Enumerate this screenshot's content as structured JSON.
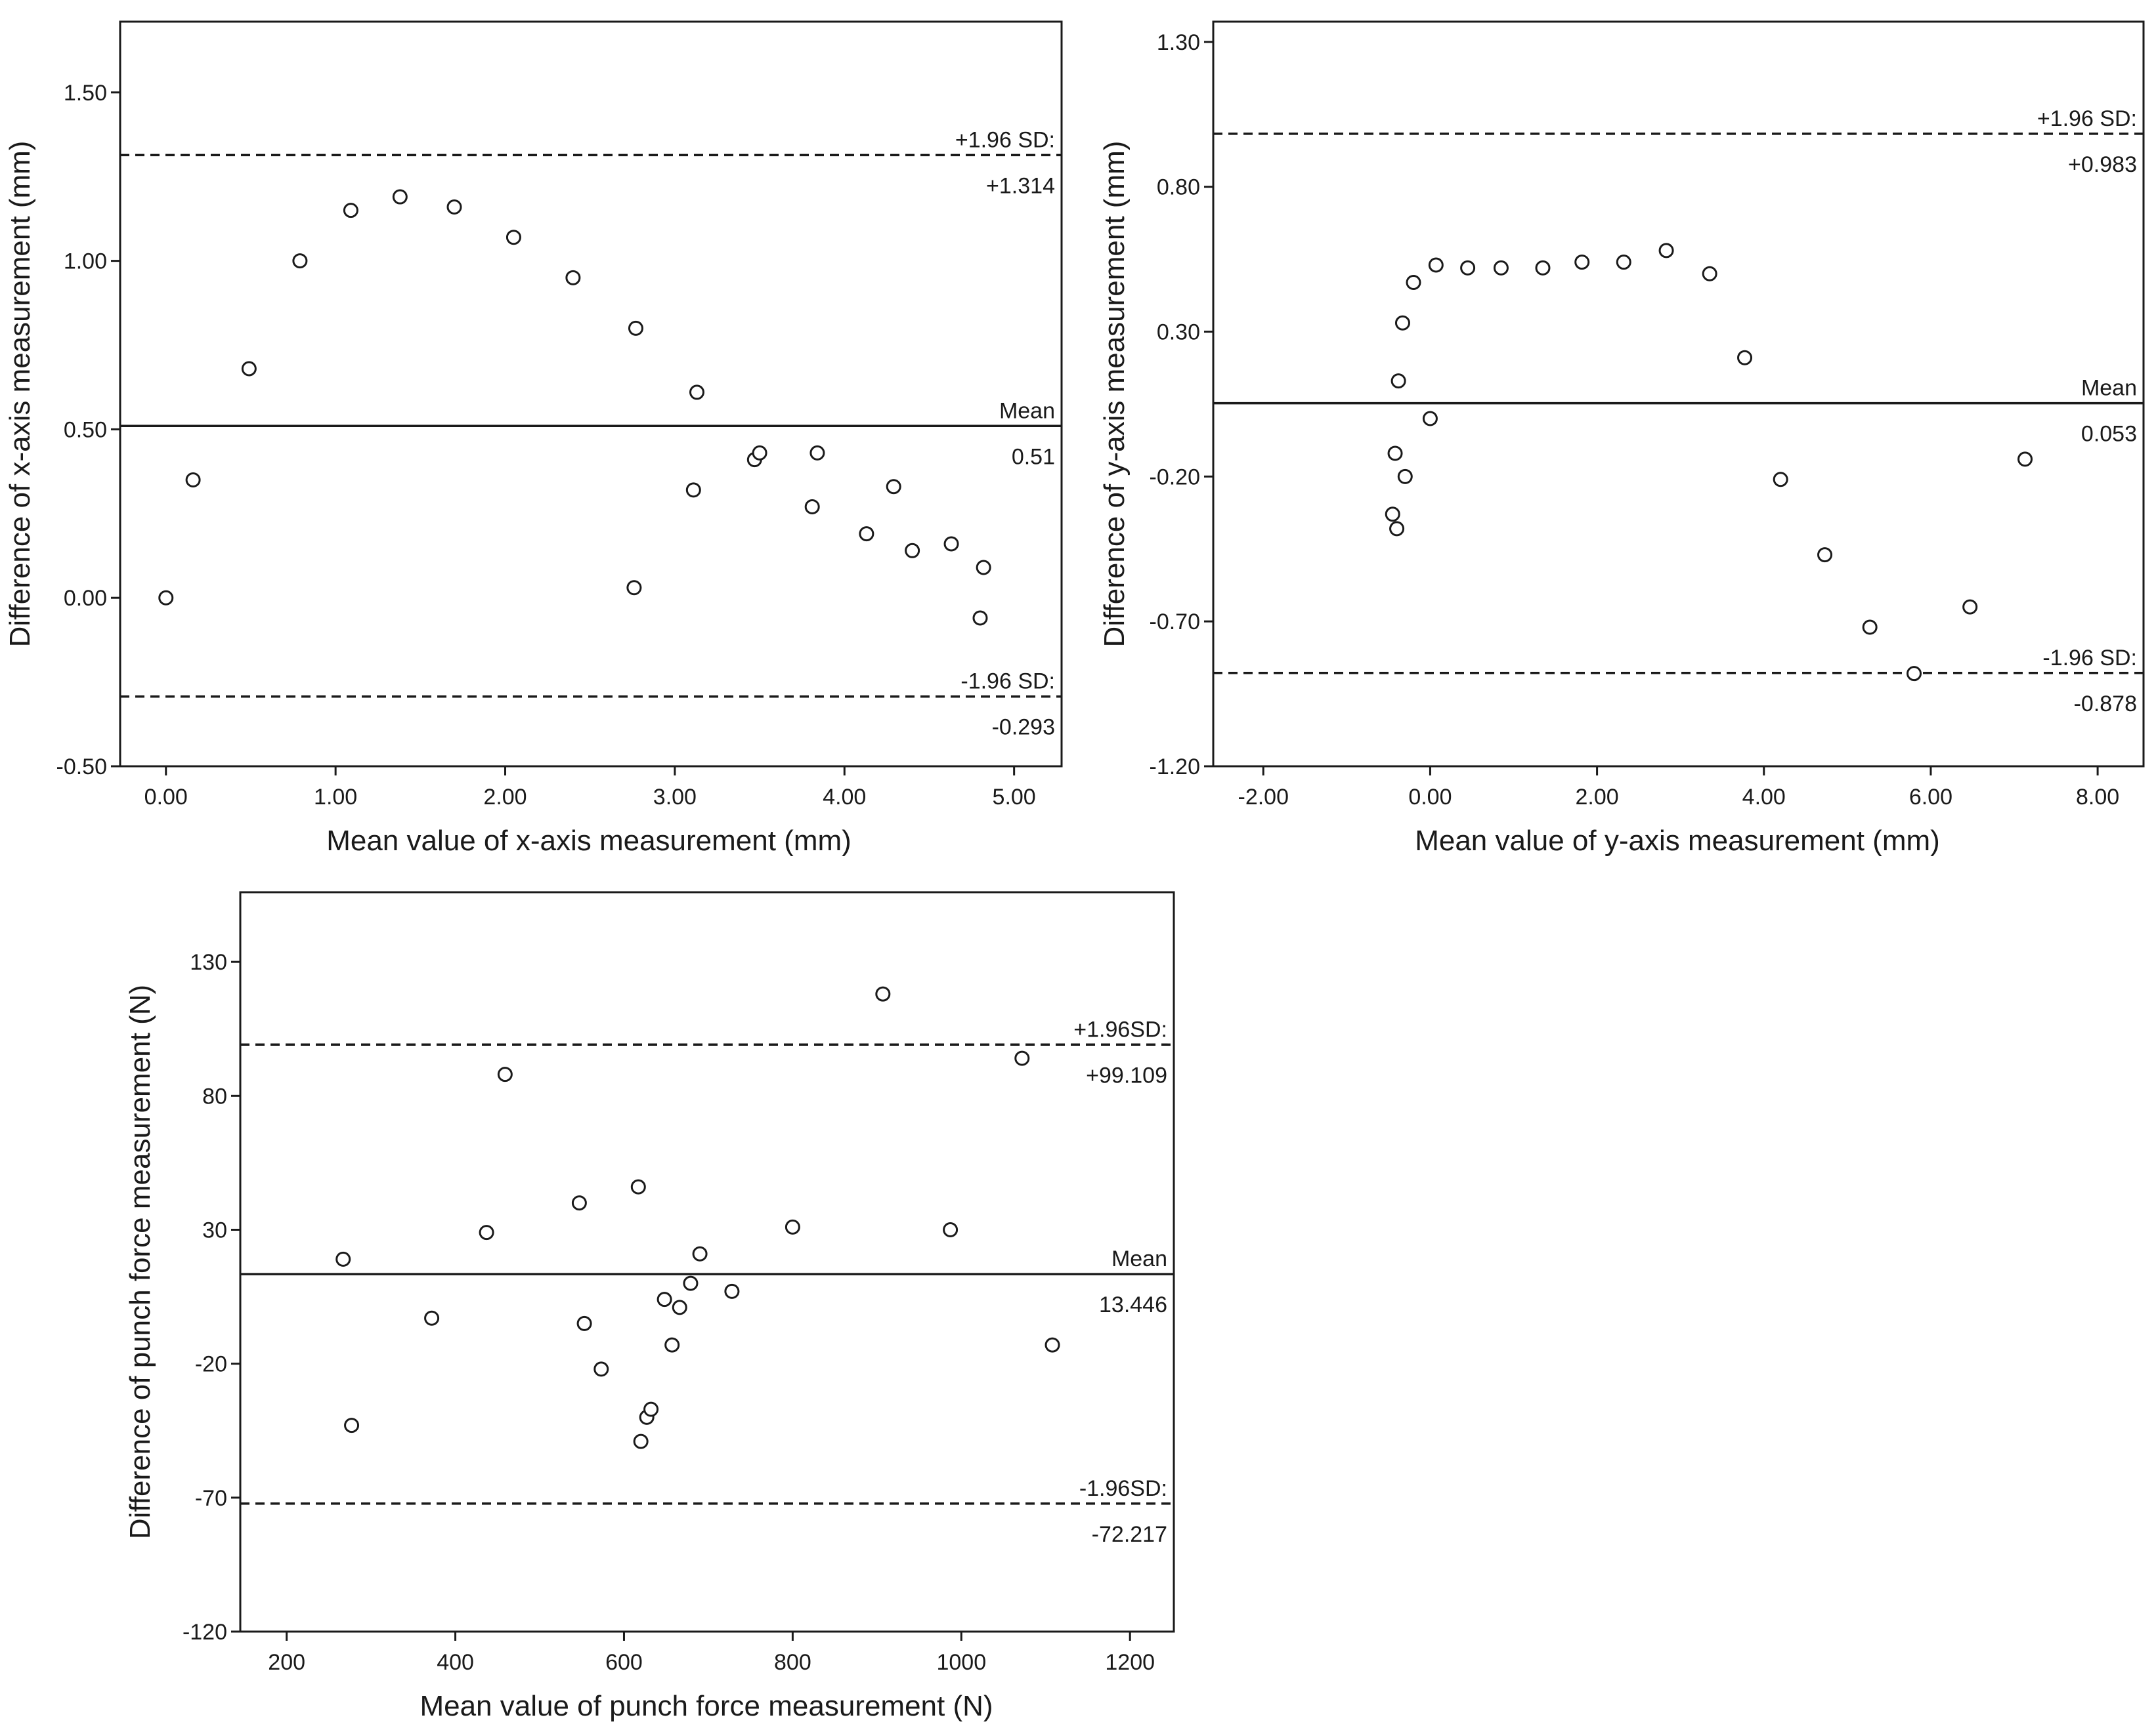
{
  "chart_data": [
    {
      "id": "x-axis",
      "type": "scatter",
      "title": "",
      "xlabel": "Mean value of x-axis measurement (mm)",
      "ylabel": "Difference of x-axis measurement (mm)",
      "xlim": [
        -0.27,
        5.28
      ],
      "ylim": [
        -0.5,
        1.71
      ],
      "xticks": [
        0,
        1,
        2,
        3,
        4,
        5
      ],
      "yticks": [
        -0.5,
        0,
        0.5,
        1,
        1.5
      ],
      "xtick_labels": [
        "0.00",
        "1.00",
        "2.00",
        "3.00",
        "4.00",
        "5.00"
      ],
      "ytick_labels": [
        "-0.50",
        "0.00",
        "0.50",
        "1.00",
        "1.50"
      ],
      "reference_lines": [
        {
          "name": "upper-limit",
          "value": 1.314,
          "style": "dashed",
          "label_top": "+1.96 SD:",
          "label_bottom": "+1.314"
        },
        {
          "name": "mean",
          "value": 0.51,
          "style": "solid",
          "label_top": "Mean",
          "label_bottom": "0.51"
        },
        {
          "name": "lower-limit",
          "value": -0.293,
          "style": "dashed",
          "label_top": "-1.96 SD:",
          "label_bottom": "-0.293"
        }
      ],
      "points": [
        [
          0.0,
          0.0
        ],
        [
          0.16,
          0.35
        ],
        [
          0.49,
          0.68
        ],
        [
          0.79,
          1.0
        ],
        [
          1.09,
          1.15
        ],
        [
          1.38,
          1.19
        ],
        [
          1.7,
          1.16
        ],
        [
          2.05,
          1.07
        ],
        [
          2.4,
          0.95
        ],
        [
          2.77,
          0.8
        ],
        [
          2.76,
          0.03
        ],
        [
          3.13,
          0.61
        ],
        [
          3.11,
          0.32
        ],
        [
          3.47,
          0.41
        ],
        [
          3.5,
          0.43
        ],
        [
          3.81,
          0.27
        ],
        [
          3.84,
          0.43
        ],
        [
          4.13,
          0.19
        ],
        [
          4.29,
          0.33
        ],
        [
          4.4,
          0.14
        ],
        [
          4.63,
          0.16
        ],
        [
          4.82,
          0.09
        ],
        [
          4.8,
          -0.06
        ]
      ]
    },
    {
      "id": "y-axis",
      "type": "scatter",
      "title": "",
      "xlabel": "Mean value of y-axis measurement (mm)",
      "ylabel": "Difference of y-axis measurement (mm)",
      "xlim": [
        -2.6,
        8.55
      ],
      "ylim": [
        -1.2,
        1.37
      ],
      "xticks": [
        -2,
        0,
        2,
        4,
        6,
        8
      ],
      "yticks": [
        -1.2,
        -0.7,
        -0.2,
        0.3,
        0.8,
        1.3
      ],
      "xtick_labels": [
        "-2.00",
        "0.00",
        "2.00",
        "4.00",
        "6.00",
        "8.00"
      ],
      "ytick_labels": [
        "-1.20",
        "-0.70",
        "-0.20",
        "0.30",
        "0.80",
        "1.30"
      ],
      "reference_lines": [
        {
          "name": "upper-limit",
          "value": 0.983,
          "style": "dashed",
          "label_top": "+1.96 SD:",
          "label_bottom": "+0.983"
        },
        {
          "name": "mean",
          "value": 0.053,
          "style": "solid",
          "label_top": "Mean",
          "label_bottom": "0.053"
        },
        {
          "name": "lower-limit",
          "value": -0.878,
          "style": "dashed",
          "label_top": "-1.96 SD:",
          "label_bottom": "-0.878"
        }
      ],
      "points": [
        [
          -0.45,
          -0.33
        ],
        [
          -0.4,
          -0.38
        ],
        [
          -0.42,
          -0.12
        ],
        [
          -0.3,
          -0.2
        ],
        [
          -0.38,
          0.13
        ],
        [
          -0.33,
          0.33
        ],
        [
          -0.2,
          0.47
        ],
        [
          0.0,
          -0.0
        ],
        [
          0.07,
          0.53
        ],
        [
          0.45,
          0.52
        ],
        [
          0.85,
          0.52
        ],
        [
          1.35,
          0.52
        ],
        [
          1.82,
          0.54
        ],
        [
          2.32,
          0.54
        ],
        [
          2.83,
          0.58
        ],
        [
          3.35,
          0.5
        ],
        [
          3.77,
          0.21
        ],
        [
          4.2,
          -0.21
        ],
        [
          4.73,
          -0.47
        ],
        [
          5.27,
          -0.72
        ],
        [
          5.8,
          -0.88
        ],
        [
          6.47,
          -0.65
        ],
        [
          7.13,
          -0.14
        ]
      ]
    },
    {
      "id": "punch-force",
      "type": "scatter",
      "title": "",
      "xlabel": "Mean value of punch force measurement (N)",
      "ylabel": "Difference of punch force measurement (N)",
      "xlim": [
        145,
        1252
      ],
      "ylim": [
        -120,
        156
      ],
      "xticks": [
        200,
        400,
        600,
        800,
        1000,
        1200
      ],
      "yticks": [
        -120,
        -70,
        -20,
        30,
        80,
        130
      ],
      "xtick_labels": [
        "200",
        "400",
        "600",
        "800",
        "1000",
        "1200"
      ],
      "ytick_labels": [
        "-120",
        "-70",
        "-20",
        "30",
        "80",
        "130"
      ],
      "reference_lines": [
        {
          "name": "upper-limit",
          "value": 99.109,
          "style": "dashed",
          "label_top": "+1.96SD:",
          "label_bottom": "+99.109"
        },
        {
          "name": "mean",
          "value": 13.446,
          "style": "solid",
          "label_top": "Mean",
          "label_bottom": "13.446"
        },
        {
          "name": "lower-limit",
          "value": -72.217,
          "style": "dashed",
          "label_top": "-1.96SD:",
          "label_bottom": "-72.217"
        }
      ],
      "points": [
        [
          267,
          19
        ],
        [
          277,
          -43
        ],
        [
          372,
          -3
        ],
        [
          437,
          29
        ],
        [
          459,
          88
        ],
        [
          547,
          40
        ],
        [
          553,
          -5
        ],
        [
          573,
          -22
        ],
        [
          617,
          46
        ],
        [
          620,
          -49
        ],
        [
          627,
          -40
        ],
        [
          632,
          -37
        ],
        [
          648,
          4
        ],
        [
          657,
          -13
        ],
        [
          666,
          1
        ],
        [
          679,
          10
        ],
        [
          690,
          21
        ],
        [
          728,
          7
        ],
        [
          800,
          31
        ],
        [
          907,
          118
        ],
        [
          987,
          30
        ],
        [
          1072,
          94
        ],
        [
          1108,
          -13
        ]
      ]
    }
  ]
}
